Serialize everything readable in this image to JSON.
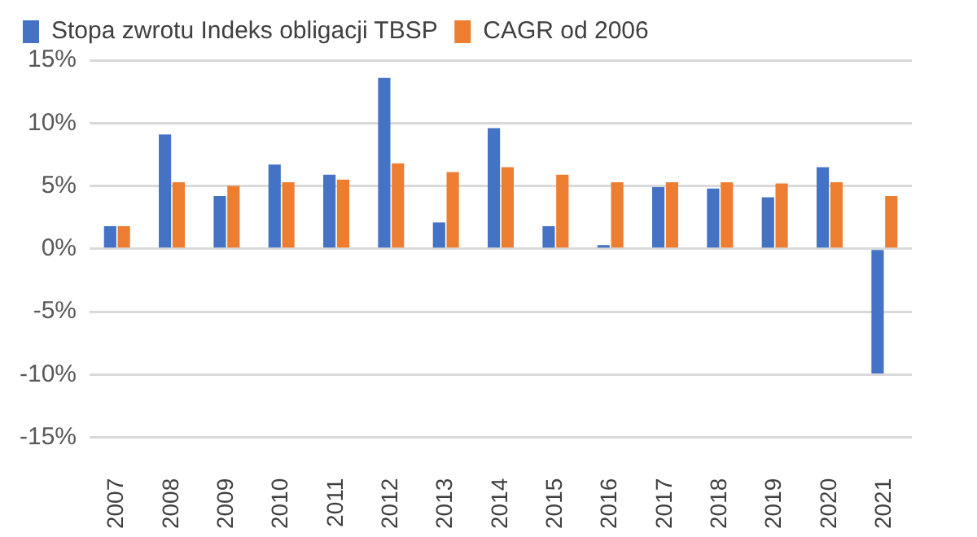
{
  "chart_data": {
    "type": "bar",
    "categories": [
      "2007",
      "2008",
      "2009",
      "2010",
      "2011",
      "2012",
      "2013",
      "2014",
      "2015",
      "2016",
      "2017",
      "2018",
      "2019",
      "2020",
      "2021"
    ],
    "series": [
      {
        "name": "Stopa zwrotu Indeks obligacji TBSP",
        "color": "#4472c4",
        "values": [
          1.8,
          9.1,
          4.2,
          6.7,
          5.9,
          13.6,
          2.1,
          9.6,
          1.8,
          0.3,
          4.9,
          4.8,
          4.1,
          6.5,
          -9.9
        ]
      },
      {
        "name": "CAGR od 2006",
        "color": "#ed7d31",
        "values": [
          1.8,
          5.3,
          5.0,
          5.3,
          5.5,
          6.8,
          6.1,
          6.5,
          5.9,
          5.3,
          5.3,
          5.3,
          5.2,
          5.3,
          4.2
        ]
      }
    ],
    "ylim": [
      -15,
      15
    ],
    "yticks": [
      {
        "value": -15,
        "label": "-15%"
      },
      {
        "value": -10,
        "label": "-10%"
      },
      {
        "value": -5,
        "label": "-5%"
      },
      {
        "value": 0,
        "label": "0%"
      },
      {
        "value": 5,
        "label": "5%"
      },
      {
        "value": 10,
        "label": "10%"
      },
      {
        "value": 15,
        "label": "15%"
      }
    ],
    "grid": "y",
    "legend": "top"
  }
}
